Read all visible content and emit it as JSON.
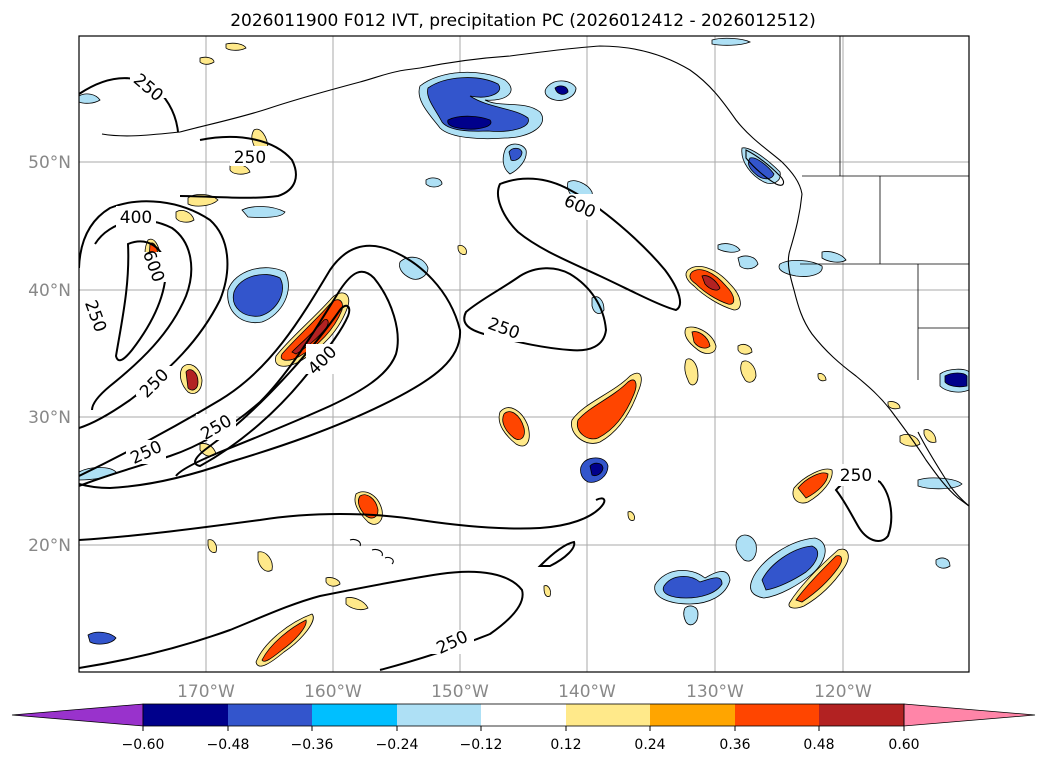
{
  "figure": {
    "title": "2026011900 F012 IVT, precipitation PC (2026012412 - 2026012512)"
  },
  "map": {
    "lon_ticks": [
      "170°W",
      "160°W",
      "150°W",
      "140°W",
      "130°W",
      "120°W"
    ],
    "lat_ticks": [
      "50°N",
      "40°N",
      "30°N",
      "20°N"
    ],
    "contour_labels": [
      "250",
      "250",
      "400",
      "600",
      "250",
      "250",
      "250",
      "250",
      "400",
      "600",
      "250",
      "250",
      "250"
    ]
  },
  "colorbar": {
    "tick_labels": [
      "−0.60",
      "−0.48",
      "−0.36",
      "−0.24",
      "−0.12",
      "0.12",
      "0.24",
      "0.36",
      "0.48",
      "0.60"
    ],
    "colors": [
      "#9932cc",
      "#00008b",
      "#3355cc",
      "#00bfff",
      "#aee0f5",
      "#ffffff",
      "#ffe98a",
      "#ffa500",
      "#ff4500",
      "#b22222",
      "#ff85a8"
    ]
  }
}
